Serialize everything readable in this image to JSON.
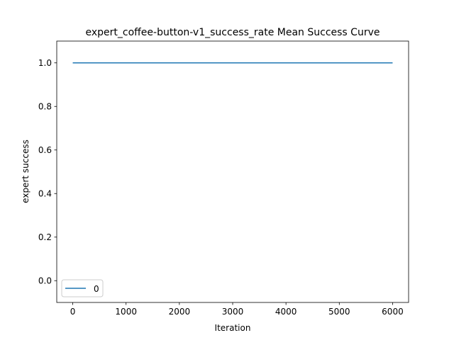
{
  "chart_data": {
    "type": "line",
    "title": "expert_coffee-button-v1_success_rate Mean Success Curve",
    "xlabel": "Iteration",
    "ylabel": "expert success",
    "xlim": [
      -300,
      6300
    ],
    "ylim": [
      -0.1,
      1.1
    ],
    "xticks": [
      0,
      1000,
      2000,
      3000,
      4000,
      5000,
      6000
    ],
    "xtick_labels": [
      "0",
      "1000",
      "2000",
      "3000",
      "4000",
      "5000",
      "6000"
    ],
    "yticks": [
      0.0,
      0.2,
      0.4,
      0.6,
      0.8,
      1.0
    ],
    "ytick_labels": [
      "0.0",
      "0.2",
      "0.4",
      "0.6",
      "0.8",
      "1.0"
    ],
    "grid": false,
    "legend_position": "lower-left",
    "series": [
      {
        "name": "0",
        "color": "#1f77b4",
        "x": [
          0,
          6000
        ],
        "y": [
          1.0,
          1.0
        ]
      }
    ]
  }
}
